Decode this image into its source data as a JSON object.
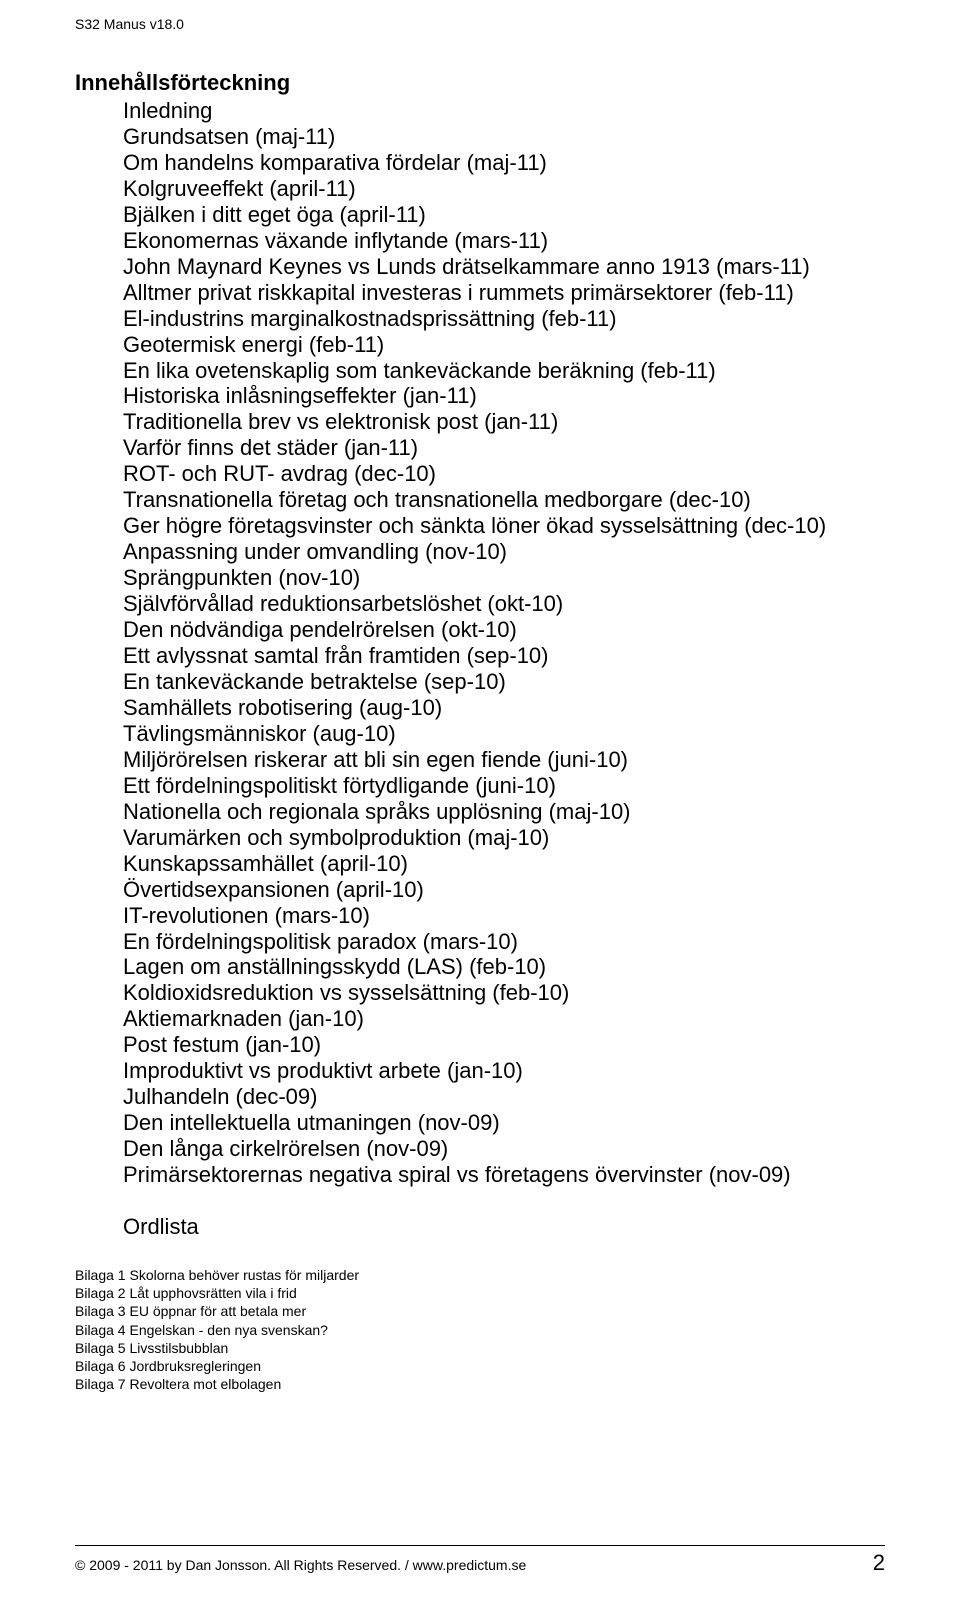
{
  "header": "S32 Manus v18.0",
  "section_title": "Innehållsförteckning",
  "toc": [
    "Inledning",
    "Grundsatsen (maj-11)",
    "Om handelns komparativa fördelar (maj-11)",
    "Kolgruveeffekt (april-11)",
    "Bjälken i ditt eget öga (april-11)",
    "Ekonomernas växande inflytande (mars-11)",
    "John Maynard Keynes vs Lunds drätselkammare anno 1913 (mars-11)",
    "Alltmer privat riskkapital investeras i rummets primärsektorer (feb-11)",
    "El-industrins marginalkostnadsprissättning (feb-11)",
    "Geotermisk energi (feb-11)",
    "En lika ovetenskaplig som tankeväckande beräkning (feb-11)",
    "Historiska inlåsningseffekter (jan-11)",
    "Traditionella brev vs elektronisk post (jan-11)",
    "Varför finns det städer (jan-11)",
    "ROT- och RUT- avdrag (dec-10)",
    "Transnationella företag och transnationella medborgare (dec-10)",
    "Ger högre företagsvinster och sänkta löner ökad sysselsättning (dec-10)",
    "Anpassning under omvandling (nov-10)",
    "Sprängpunkten (nov-10)",
    "Självförvållad reduktionsarbetslöshet (okt-10)",
    "Den nödvändiga pendelrörelsen (okt-10)",
    "Ett avlyssnat samtal från framtiden (sep-10)",
    "En tankeväckande betraktelse (sep-10)",
    "Samhällets robotisering (aug-10)",
    "Tävlingsmänniskor (aug-10)",
    "Miljörörelsen riskerar att bli sin egen fiende (juni-10)",
    "Ett fördelningspolitiskt förtydligande (juni-10)",
    "Nationella och regionala språks upplösning (maj-10)",
    "Varumärken och symbolproduktion (maj-10)",
    "Kunskapssamhället (april-10)",
    "Övertidsexpansionen (april-10)",
    "IT-revolutionen (mars-10)",
    "En fördelningspolitisk paradox (mars-10)",
    "Lagen om anställningsskydd (LAS) (feb-10)",
    "Koldioxidsreduktion vs sysselsättning (feb-10)",
    "Aktiemarknaden (jan-10)",
    "Post festum (jan-10)",
    "Improduktivt vs produktivt arbete (jan-10)",
    "Julhandeln (dec-09)",
    "Den intellektuella utmaningen (nov-09)",
    "Den långa cirkelrörelsen (nov-09)",
    "Primärsektorernas negativa spiral vs företagens övervinster (nov-09)"
  ],
  "ordlista": "Ordlista",
  "bilaga": [
    "Bilaga 1 Skolorna behöver rustas för miljarder",
    "Bilaga 2 Låt upphovsrätten vila i frid",
    "Bilaga 3 EU öppnar för att betala mer",
    "Bilaga 4 Engelskan - den nya svenskan?",
    "Bilaga 5 Livsstilsbubblan",
    "Bilaga 6 Jordbruksregleringen",
    "Bilaga 7 Revoltera mot elbolagen"
  ],
  "footer": {
    "text": "© 2009 - 2011 by Dan Jonsson. All Rights Reserved. / www.predictum.se",
    "page": "2"
  }
}
